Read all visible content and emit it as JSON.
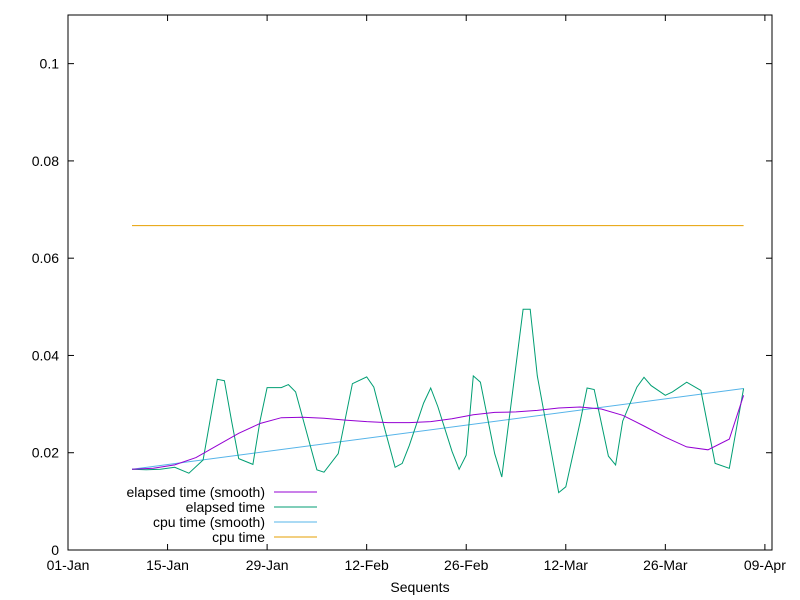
{
  "chart_data": {
    "type": "line",
    "title": "",
    "xlabel": "Sequents",
    "ylabel": "",
    "xlim": [
      "2024-01-01",
      "2024-04-09"
    ],
    "ylim": [
      0,
      0.11
    ],
    "x_ticks": [
      "01-Jan",
      "15-Jan",
      "29-Jan",
      "12-Feb",
      "26-Feb",
      "12-Mar",
      "26-Mar",
      "09-Apr"
    ],
    "y_ticks": [
      "0",
      "0.02",
      "0.04",
      "0.06",
      "0.08",
      "0.1"
    ],
    "legend_position": "bottom-left",
    "grid": false,
    "series": [
      {
        "name": "elapsed time (smooth)",
        "color": "#9400d3",
        "x": [
          "2024-01-10",
          "2024-01-13",
          "2024-01-16",
          "2024-01-19",
          "2024-01-22",
          "2024-01-25",
          "2024-01-28",
          "2024-01-31",
          "2024-02-03",
          "2024-02-06",
          "2024-02-09",
          "2024-02-12",
          "2024-02-15",
          "2024-02-18",
          "2024-02-21",
          "2024-02-24",
          "2024-02-27",
          "2024-03-01",
          "2024-03-04",
          "2024-03-07",
          "2024-03-10",
          "2024-03-13",
          "2024-03-16",
          "2024-03-19",
          "2024-03-22",
          "2024-03-25",
          "2024-03-28",
          "2024-03-31",
          "2024-04-03",
          "2024-04-05"
        ],
        "values": [
          0.0166,
          0.0168,
          0.0175,
          0.019,
          0.0215,
          0.024,
          0.026,
          0.0272,
          0.0273,
          0.0271,
          0.0267,
          0.0264,
          0.0262,
          0.0262,
          0.0264,
          0.027,
          0.0278,
          0.0283,
          0.0284,
          0.0287,
          0.0292,
          0.0294,
          0.029,
          0.0277,
          0.0255,
          0.0232,
          0.0212,
          0.0206,
          0.0228,
          0.0318
        ]
      },
      {
        "name": "elapsed time",
        "color": "#009e73",
        "x": [
          "2024-01-10",
          "2024-01-12",
          "2024-01-14",
          "2024-01-16",
          "2024-01-18",
          "2024-01-20",
          "2024-01-22",
          "2024-01-23",
          "2024-01-24",
          "2024-01-25",
          "2024-01-27",
          "2024-01-28",
          "2024-01-29",
          "2024-01-31",
          "2024-02-01",
          "2024-02-02",
          "2024-02-04",
          "2024-02-05",
          "2024-02-06",
          "2024-02-08",
          "2024-02-09",
          "2024-02-10",
          "2024-02-12",
          "2024-02-13",
          "2024-02-14",
          "2024-02-16",
          "2024-02-17",
          "2024-02-18",
          "2024-02-20",
          "2024-02-21",
          "2024-02-22",
          "2024-02-24",
          "2024-02-25",
          "2024-02-26",
          "2024-02-27",
          "2024-02-28",
          "2024-03-01",
          "2024-03-02",
          "2024-03-03",
          "2024-03-05",
          "2024-03-06",
          "2024-03-07",
          "2024-03-09",
          "2024-03-10",
          "2024-03-11",
          "2024-03-13",
          "2024-03-14",
          "2024-03-15",
          "2024-03-17",
          "2024-03-18",
          "2024-03-19",
          "2024-03-21",
          "2024-03-22",
          "2024-03-23",
          "2024-03-25",
          "2024-03-26",
          "2024-03-28",
          "2024-03-30",
          "2024-04-01",
          "2024-04-03",
          "2024-04-05"
        ],
        "values": [
          0.0166,
          0.0165,
          0.0166,
          0.017,
          0.0158,
          0.0185,
          0.0351,
          0.0348,
          0.0265,
          0.0188,
          0.0176,
          0.0265,
          0.0334,
          0.0334,
          0.034,
          0.0325,
          0.0218,
          0.0165,
          0.016,
          0.0198,
          0.027,
          0.0342,
          0.0356,
          0.0335,
          0.0278,
          0.017,
          0.0178,
          0.0215,
          0.0302,
          0.0333,
          0.0295,
          0.0203,
          0.0166,
          0.0195,
          0.0358,
          0.0345,
          0.0198,
          0.015,
          0.0265,
          0.0495,
          0.0495,
          0.0358,
          0.0198,
          0.0118,
          0.013,
          0.0262,
          0.0333,
          0.033,
          0.0193,
          0.0175,
          0.0265,
          0.0335,
          0.0355,
          0.0338,
          0.0318,
          0.0325,
          0.0345,
          0.0328,
          0.0178,
          0.0168,
          0.0332
        ]
      },
      {
        "name": "cpu time (smooth)",
        "color": "#56b4e9",
        "x": [
          "2024-01-10",
          "2024-04-05"
        ],
        "values": [
          0.0166,
          0.0332
        ]
      },
      {
        "name": "cpu time",
        "color": "#e69f00",
        "x": [
          "2024-01-10",
          "2024-04-05"
        ],
        "values": [
          0.0667,
          0.0667
        ]
      }
    ]
  }
}
